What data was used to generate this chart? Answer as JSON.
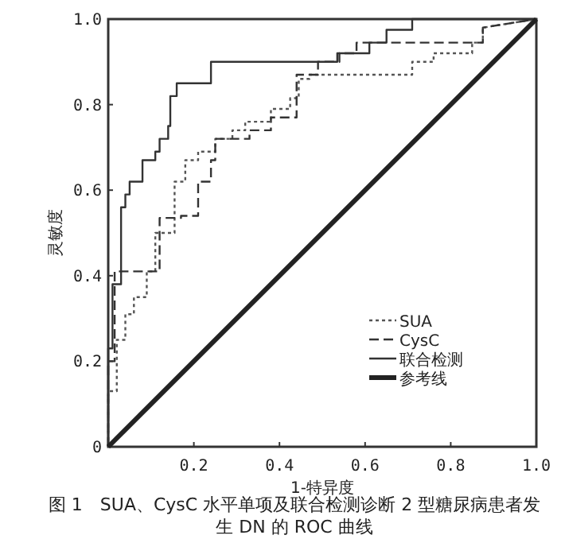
{
  "chart_data": {
    "type": "line",
    "title": "图 1　SUA、CysC 水平单项及联合检测诊断 2 型糖尿病患者发生 DN 的 ROC 曲线",
    "xlabel": "1-特异度",
    "ylabel": "灵敏度",
    "xlim": [
      0,
      1
    ],
    "ylim": [
      0,
      1
    ],
    "xticks": [
      {
        "value": 0,
        "label": null
      },
      0.2,
      0.4,
      0.6,
      0.8,
      {
        "value": 1,
        "label": "1.0"
      }
    ],
    "yticks": [
      0,
      0.2,
      0.4,
      0.6,
      0.8,
      {
        "value": 1,
        "label": "1.0"
      }
    ],
    "grid": false,
    "legend": "right",
    "series": [
      {
        "name": "SUA",
        "color": "#555555",
        "line_style": "dotted",
        "x": [
          0,
          0,
          0.02,
          0.02,
          0.04,
          0.04,
          0.06,
          0.06,
          0.09,
          0.09,
          0.11,
          0.11,
          0.155,
          0.155,
          0.18,
          0.18,
          0.21,
          0.21,
          0.25,
          0.25,
          0.29,
          0.29,
          0.32,
          0.32,
          0.38,
          0.38,
          0.425,
          0.425,
          0.445,
          0.445,
          0.47,
          0.47,
          0.71,
          0.71,
          0.76,
          0.76,
          0.85,
          0.85,
          0.875,
          0.875,
          1
        ],
        "values": [
          0,
          0.13,
          0.13,
          0.25,
          0.25,
          0.31,
          0.31,
          0.35,
          0.35,
          0.41,
          0.41,
          0.5,
          0.5,
          0.62,
          0.62,
          0.67,
          0.67,
          0.69,
          0.69,
          0.72,
          0.72,
          0.74,
          0.74,
          0.76,
          0.76,
          0.79,
          0.79,
          0.815,
          0.815,
          0.86,
          0.86,
          0.87,
          0.87,
          0.9,
          0.9,
          0.92,
          0.92,
          0.945,
          0.945,
          0.98,
          1
        ]
      },
      {
        "name": "CysC",
        "color": "#333333",
        "line_style": "dashed",
        "x": [
          0,
          0,
          0.015,
          0.015,
          0.12,
          0.12,
          0.17,
          0.17,
          0.21,
          0.21,
          0.24,
          0.24,
          0.25,
          0.25,
          0.33,
          0.33,
          0.38,
          0.38,
          0.44,
          0.44,
          0.49,
          0.49,
          0.54,
          0.54,
          0.58,
          0.58,
          0.875,
          0.875,
          1
        ],
        "values": [
          0,
          0.2,
          0.2,
          0.41,
          0.41,
          0.535,
          0.535,
          0.54,
          0.54,
          0.62,
          0.62,
          0.67,
          0.67,
          0.72,
          0.72,
          0.74,
          0.74,
          0.77,
          0.77,
          0.87,
          0.87,
          0.9,
          0.9,
          0.92,
          0.92,
          0.945,
          0.945,
          0.98,
          1
        ]
      },
      {
        "name": "联合检测",
        "color": "#333333",
        "line_style": "solid",
        "x": [
          0,
          0,
          0.01,
          0.01,
          0.03,
          0.03,
          0.04,
          0.04,
          0.05,
          0.05,
          0.08,
          0.08,
          0.11,
          0.11,
          0.12,
          0.12,
          0.14,
          0.14,
          0.145,
          0.145,
          0.16,
          0.16,
          0.24,
          0.24,
          0.535,
          0.535,
          0.61,
          0.61,
          0.65,
          0.65,
          0.71,
          0.71,
          1
        ],
        "values": [
          0,
          0.23,
          0.23,
          0.38,
          0.38,
          0.56,
          0.56,
          0.59,
          0.59,
          0.62,
          0.62,
          0.67,
          0.67,
          0.69,
          0.69,
          0.72,
          0.72,
          0.75,
          0.75,
          0.82,
          0.82,
          0.85,
          0.85,
          0.9,
          0.9,
          0.92,
          0.92,
          0.945,
          0.945,
          0.975,
          0.975,
          1,
          1
        ]
      },
      {
        "name": "参考线",
        "color": "#222222",
        "line_style": "solid",
        "x": [
          0,
          1
        ],
        "values": [
          0,
          1
        ]
      }
    ]
  }
}
